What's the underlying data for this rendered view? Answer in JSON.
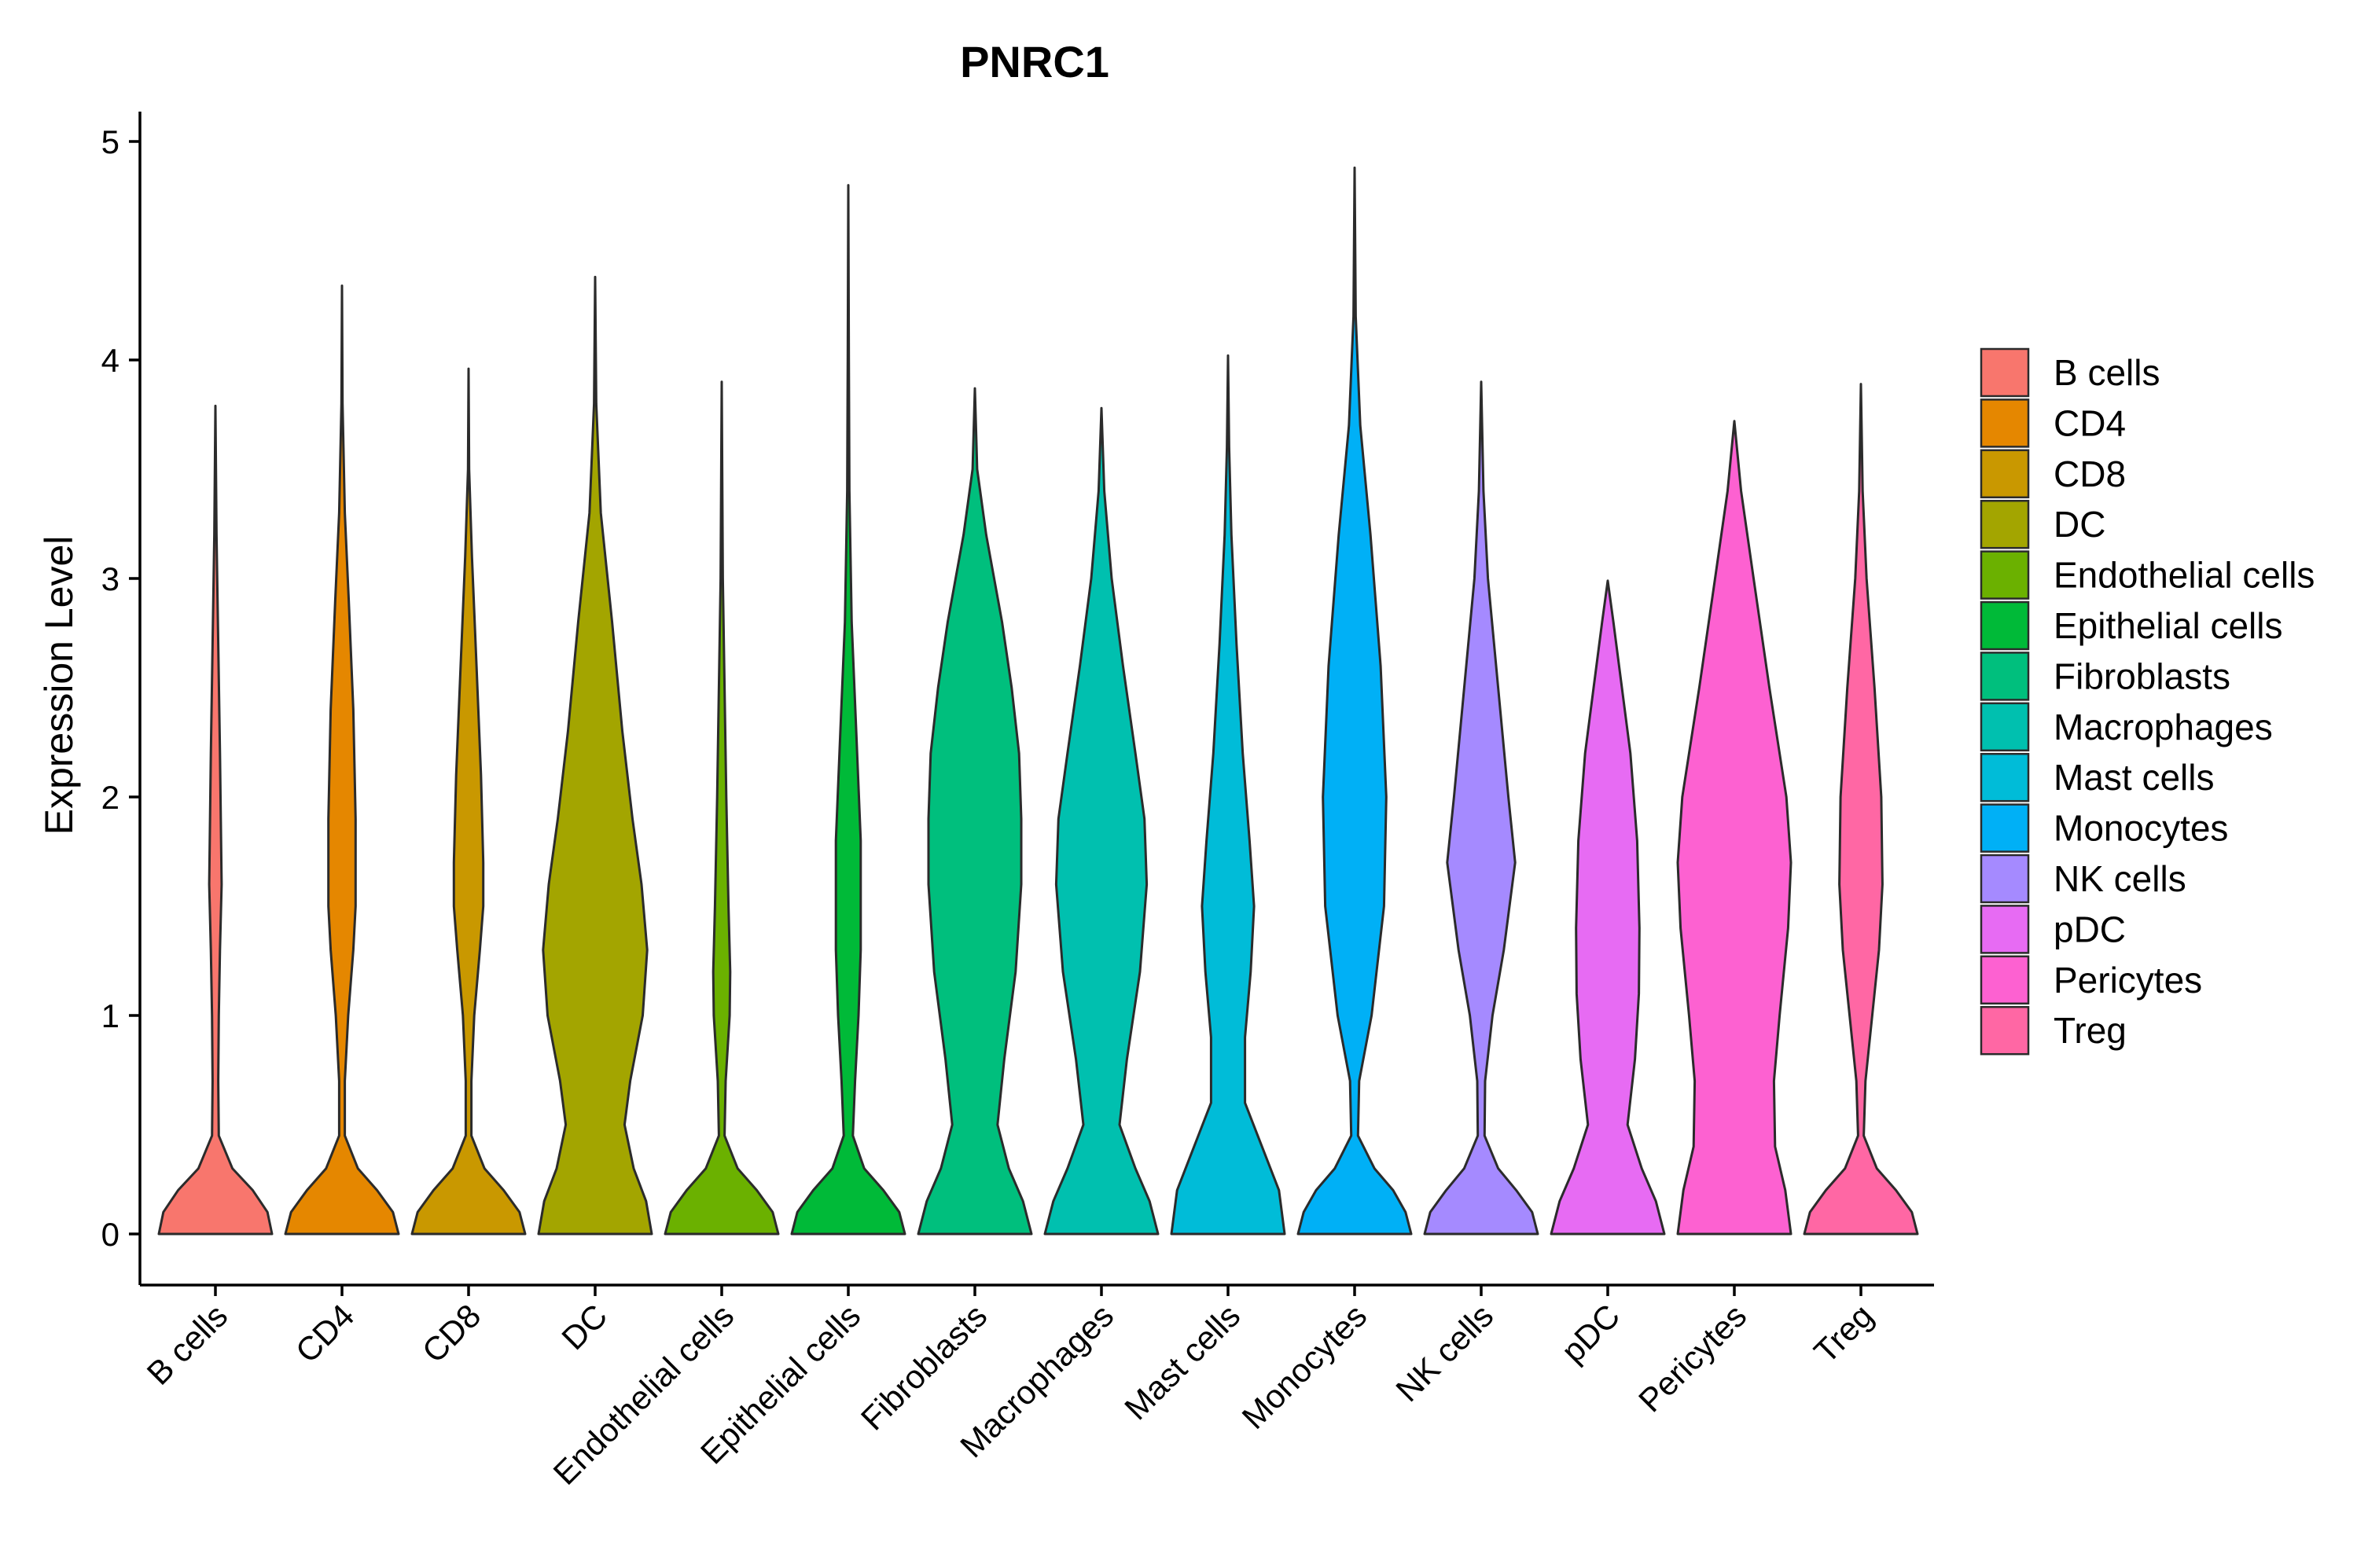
{
  "chart_data": {
    "type": "violin",
    "title": "PNRC1",
    "xlabel": "",
    "ylabel": "Expression Level",
    "ylim": [
      -0.23,
      5.13
    ],
    "yticks": [
      0,
      1,
      2,
      3,
      4,
      5
    ],
    "legend_position": "right",
    "categories": [
      "B cells",
      "CD4",
      "CD8",
      "DC",
      "Endothelial cells",
      "Epithelial cells",
      "Fibroblasts",
      "Macrophages",
      "Mast cells",
      "Monocytes",
      "NK cells",
      "pDC",
      "Pericytes",
      "Treg"
    ],
    "colors": [
      "#F8766D",
      "#E58700",
      "#C99800",
      "#A3A500",
      "#6BB100",
      "#00BA38",
      "#00BF7D",
      "#00C0AF",
      "#00BCD8",
      "#00B0F6",
      "#A58AFF",
      "#E76BF3",
      "#FD61D1",
      "#FF67A4"
    ],
    "series": [
      {
        "name": "B cells",
        "max": 3.79,
        "density": [
          [
            0,
            1.0
          ],
          [
            0.1,
            0.92
          ],
          [
            0.2,
            0.66
          ],
          [
            0.3,
            0.3
          ],
          [
            0.45,
            0.06
          ],
          [
            0.7,
            0.05
          ],
          [
            1.0,
            0.06
          ],
          [
            1.3,
            0.08
          ],
          [
            1.6,
            0.11
          ],
          [
            1.8,
            0.1
          ],
          [
            2.2,
            0.08
          ],
          [
            2.7,
            0.05
          ],
          [
            3.2,
            0.02
          ],
          [
            3.79,
            0
          ]
        ]
      },
      {
        "name": "CD4",
        "max": 4.34,
        "density": [
          [
            0,
            1.0
          ],
          [
            0.1,
            0.9
          ],
          [
            0.2,
            0.62
          ],
          [
            0.3,
            0.28
          ],
          [
            0.45,
            0.05
          ],
          [
            0.7,
            0.05
          ],
          [
            1.0,
            0.11
          ],
          [
            1.3,
            0.2
          ],
          [
            1.5,
            0.24
          ],
          [
            1.9,
            0.24
          ],
          [
            2.4,
            0.2
          ],
          [
            2.9,
            0.12
          ],
          [
            3.3,
            0.05
          ],
          [
            3.8,
            0.01
          ],
          [
            4.34,
            0
          ]
        ]
      },
      {
        "name": "CD8",
        "max": 3.96,
        "density": [
          [
            0,
            1.0
          ],
          [
            0.1,
            0.9
          ],
          [
            0.2,
            0.62
          ],
          [
            0.3,
            0.28
          ],
          [
            0.45,
            0.05
          ],
          [
            0.7,
            0.05
          ],
          [
            1.0,
            0.1
          ],
          [
            1.3,
            0.2
          ],
          [
            1.5,
            0.26
          ],
          [
            1.7,
            0.26
          ],
          [
            2.1,
            0.22
          ],
          [
            2.6,
            0.14
          ],
          [
            3.1,
            0.06
          ],
          [
            3.5,
            0.01
          ],
          [
            3.96,
            0
          ]
        ]
      },
      {
        "name": "DC",
        "max": 4.38,
        "density": [
          [
            0,
            1.0
          ],
          [
            0.15,
            0.9
          ],
          [
            0.3,
            0.68
          ],
          [
            0.5,
            0.52
          ],
          [
            0.7,
            0.62
          ],
          [
            1.0,
            0.84
          ],
          [
            1.3,
            0.92
          ],
          [
            1.6,
            0.82
          ],
          [
            1.9,
            0.66
          ],
          [
            2.3,
            0.48
          ],
          [
            2.8,
            0.3
          ],
          [
            3.3,
            0.1
          ],
          [
            3.8,
            0.02
          ],
          [
            4.38,
            0
          ]
        ]
      },
      {
        "name": "Endothelial cells",
        "max": 3.9,
        "density": [
          [
            0,
            1.0
          ],
          [
            0.1,
            0.9
          ],
          [
            0.2,
            0.62
          ],
          [
            0.3,
            0.28
          ],
          [
            0.45,
            0.05
          ],
          [
            0.7,
            0.07
          ],
          [
            1.0,
            0.14
          ],
          [
            1.2,
            0.15
          ],
          [
            1.5,
            0.12
          ],
          [
            2.0,
            0.08
          ],
          [
            2.5,
            0.05
          ],
          [
            3.0,
            0.02
          ],
          [
            3.9,
            0
          ]
        ]
      },
      {
        "name": "Epithelial cells",
        "max": 4.8,
        "density": [
          [
            0,
            1.0
          ],
          [
            0.1,
            0.9
          ],
          [
            0.2,
            0.62
          ],
          [
            0.3,
            0.28
          ],
          [
            0.45,
            0.08
          ],
          [
            0.7,
            0.12
          ],
          [
            1.0,
            0.18
          ],
          [
            1.3,
            0.22
          ],
          [
            1.8,
            0.22
          ],
          [
            2.3,
            0.14
          ],
          [
            2.8,
            0.06
          ],
          [
            3.4,
            0.02
          ],
          [
            4.0,
            0.01
          ],
          [
            4.8,
            0
          ]
        ]
      },
      {
        "name": "Fibroblasts",
        "max": 3.87,
        "density": [
          [
            0,
            1.0
          ],
          [
            0.15,
            0.85
          ],
          [
            0.3,
            0.6
          ],
          [
            0.5,
            0.4
          ],
          [
            0.8,
            0.52
          ],
          [
            1.2,
            0.72
          ],
          [
            1.6,
            0.82
          ],
          [
            1.9,
            0.82
          ],
          [
            2.2,
            0.78
          ],
          [
            2.5,
            0.65
          ],
          [
            2.8,
            0.48
          ],
          [
            3.2,
            0.2
          ],
          [
            3.5,
            0.04
          ],
          [
            3.87,
            0
          ]
        ]
      },
      {
        "name": "Macrophages",
        "max": 3.78,
        "density": [
          [
            0,
            1.0
          ],
          [
            0.15,
            0.85
          ],
          [
            0.3,
            0.6
          ],
          [
            0.5,
            0.32
          ],
          [
            0.8,
            0.45
          ],
          [
            1.2,
            0.68
          ],
          [
            1.6,
            0.8
          ],
          [
            1.9,
            0.76
          ],
          [
            2.2,
            0.6
          ],
          [
            2.6,
            0.38
          ],
          [
            3.0,
            0.18
          ],
          [
            3.4,
            0.05
          ],
          [
            3.78,
            0
          ]
        ]
      },
      {
        "name": "Mast cells",
        "max": 4.02,
        "density": [
          [
            0,
            1.0
          ],
          [
            0.2,
            0.9
          ],
          [
            0.4,
            0.6
          ],
          [
            0.6,
            0.3
          ],
          [
            0.9,
            0.3
          ],
          [
            1.2,
            0.4
          ],
          [
            1.5,
            0.46
          ],
          [
            1.8,
            0.38
          ],
          [
            2.2,
            0.26
          ],
          [
            2.7,
            0.15
          ],
          [
            3.2,
            0.06
          ],
          [
            3.6,
            0.02
          ],
          [
            4.02,
            0
          ]
        ]
      },
      {
        "name": "Monocytes",
        "max": 4.88,
        "density": [
          [
            0,
            1.0
          ],
          [
            0.1,
            0.9
          ],
          [
            0.2,
            0.68
          ],
          [
            0.3,
            0.35
          ],
          [
            0.45,
            0.06
          ],
          [
            0.7,
            0.08
          ],
          [
            1.0,
            0.3
          ],
          [
            1.5,
            0.52
          ],
          [
            2.0,
            0.56
          ],
          [
            2.6,
            0.46
          ],
          [
            3.2,
            0.28
          ],
          [
            3.7,
            0.1
          ],
          [
            4.2,
            0.02
          ],
          [
            4.88,
            0
          ]
        ]
      },
      {
        "name": "NK cells",
        "max": 3.9,
        "density": [
          [
            0,
            1.0
          ],
          [
            0.1,
            0.9
          ],
          [
            0.2,
            0.62
          ],
          [
            0.3,
            0.3
          ],
          [
            0.45,
            0.06
          ],
          [
            0.7,
            0.07
          ],
          [
            1.0,
            0.2
          ],
          [
            1.3,
            0.4
          ],
          [
            1.7,
            0.6
          ],
          [
            2.0,
            0.48
          ],
          [
            2.5,
            0.3
          ],
          [
            3.0,
            0.12
          ],
          [
            3.4,
            0.04
          ],
          [
            3.9,
            0
          ]
        ]
      },
      {
        "name": "pDC",
        "max": 2.99,
        "density": [
          [
            0,
            1.0
          ],
          [
            0.15,
            0.85
          ],
          [
            0.3,
            0.6
          ],
          [
            0.5,
            0.35
          ],
          [
            0.8,
            0.48
          ],
          [
            1.1,
            0.55
          ],
          [
            1.4,
            0.56
          ],
          [
            1.8,
            0.52
          ],
          [
            2.2,
            0.4
          ],
          [
            2.5,
            0.25
          ],
          [
            2.8,
            0.1
          ],
          [
            2.99,
            0
          ]
        ]
      },
      {
        "name": "Pericytes",
        "max": 3.72,
        "density": [
          [
            0,
            1.0
          ],
          [
            0.2,
            0.9
          ],
          [
            0.4,
            0.72
          ],
          [
            0.7,
            0.7
          ],
          [
            1.0,
            0.8
          ],
          [
            1.4,
            0.95
          ],
          [
            1.7,
            1.0
          ],
          [
            2.0,
            0.92
          ],
          [
            2.5,
            0.62
          ],
          [
            3.0,
            0.34
          ],
          [
            3.4,
            0.12
          ],
          [
            3.72,
            0
          ]
        ]
      },
      {
        "name": "Treg",
        "max": 3.89,
        "density": [
          [
            0,
            1.0
          ],
          [
            0.1,
            0.9
          ],
          [
            0.2,
            0.62
          ],
          [
            0.3,
            0.28
          ],
          [
            0.45,
            0.05
          ],
          [
            0.7,
            0.08
          ],
          [
            1.0,
            0.2
          ],
          [
            1.3,
            0.32
          ],
          [
            1.6,
            0.38
          ],
          [
            2.0,
            0.36
          ],
          [
            2.5,
            0.24
          ],
          [
            3.0,
            0.1
          ],
          [
            3.4,
            0.03
          ],
          [
            3.89,
            0
          ]
        ]
      }
    ]
  }
}
